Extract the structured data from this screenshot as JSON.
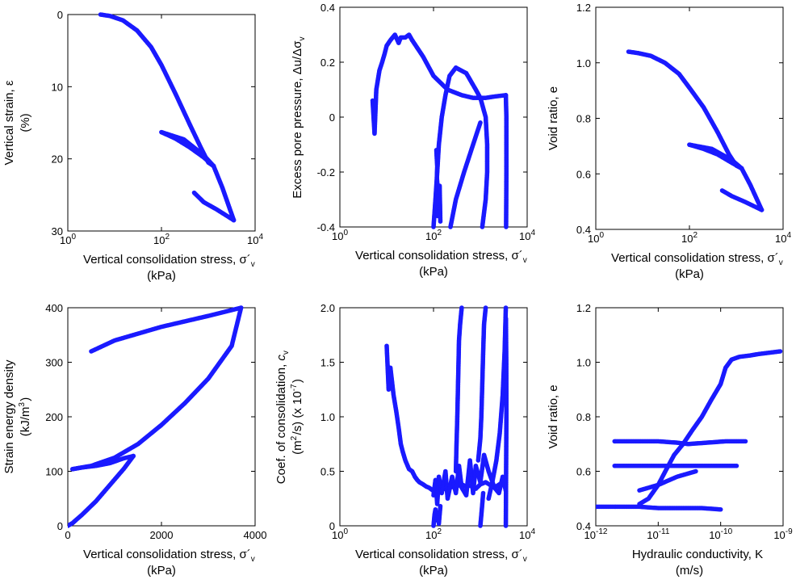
{
  "figure": {
    "point_color": "#1a1aff"
  },
  "chart_data": [
    {
      "id": "p1",
      "type": "scatter",
      "xscale": "log",
      "xlim": [
        1,
        10000
      ],
      "xticks": [
        {
          "v": 1,
          "b": "10",
          "e": "0"
        },
        {
          "v": 100,
          "b": "10",
          "e": "2"
        },
        {
          "v": 10000,
          "b": "10",
          "e": "4"
        }
      ],
      "xlabel_lines": [
        "Vertical consolidation stress, σ´v",
        "(kPa)"
      ],
      "yscale": "linear",
      "ylim": [
        0,
        30
      ],
      "yinverted": true,
      "yticks": [
        0,
        10,
        20,
        30
      ],
      "ylabel_lines": [
        "Vertical strain, ε",
        "(%)"
      ],
      "series": [
        {
          "x": [
            5,
            8,
            15,
            30,
            60,
            100,
            200,
            400,
            700,
            1000,
            1300
          ],
          "y": [
            0,
            0.2,
            0.8,
            2.2,
            4.5,
            7.0,
            11.0,
            15.2,
            18.5,
            20.5,
            21.0
          ]
        },
        {
          "x": [
            1300,
            800,
            400,
            200,
            100
          ],
          "y": [
            21.0,
            19.8,
            18.4,
            17.2,
            16.3
          ]
        },
        {
          "x": [
            100,
            300,
            800,
            1300,
            2000,
            3500
          ],
          "y": [
            16.3,
            17.3,
            19.5,
            21.0,
            24.0,
            28.5
          ]
        },
        {
          "x": [
            3500,
            1500,
            800,
            500
          ],
          "y": [
            28.5,
            27.0,
            26.0,
            24.7
          ]
        }
      ]
    },
    {
      "id": "p2",
      "type": "scatter",
      "xscale": "log",
      "xlim": [
        1,
        10000
      ],
      "xticks": [
        {
          "v": 1,
          "b": "10",
          "e": "0"
        },
        {
          "v": 100,
          "b": "10",
          "e": "2"
        },
        {
          "v": 10000,
          "b": "10",
          "e": "4"
        }
      ],
      "xlabel_lines": [
        "Vertical consolidation stress, σ´v",
        "(kPa)"
      ],
      "yscale": "linear",
      "ylim": [
        -0.4,
        0.4
      ],
      "yinverted": false,
      "yticks": [
        -0.4,
        -0.2,
        0,
        0.2,
        0.4
      ],
      "ylabel_lines": [
        "Excess pore pressure, Δu/Δσv"
      ],
      "series": [
        {
          "x": [
            5,
            5.5,
            6,
            7,
            8,
            9,
            10,
            12,
            15,
            18,
            20,
            25,
            30,
            35
          ],
          "y": [
            0.06,
            -0.06,
            0.1,
            0.17,
            0.2,
            0.23,
            0.26,
            0.28,
            0.3,
            0.27,
            0.29,
            0.29,
            0.3,
            0.28
          ]
        },
        {
          "x": [
            35,
            60,
            100,
            200,
            400,
            700,
            1000,
            1300,
            2000,
            3500
          ],
          "y": [
            0.28,
            0.22,
            0.15,
            0.1,
            0.08,
            0.07,
            0.07,
            0.07,
            0.075,
            0.08
          ]
        },
        {
          "x": [
            3500,
            3600,
            3600,
            3550
          ],
          "y": [
            0.08,
            0.0,
            -0.2,
            -0.4
          ]
        },
        {
          "x": [
            100,
            110,
            120,
            130,
            150,
            180,
            220,
            300
          ],
          "y": [
            -0.4,
            -0.3,
            -0.2,
            -0.1,
            0.0,
            0.08,
            0.15,
            0.18
          ]
        },
        {
          "x": [
            300,
            500,
            800,
            1000,
            1300,
            1400,
            1400,
            1300,
            1100
          ],
          "y": [
            0.18,
            0.16,
            0.1,
            0.07,
            0.0,
            -0.1,
            -0.2,
            -0.3,
            -0.4
          ]
        },
        {
          "x": [
            230,
            300,
            450,
            700,
            1000
          ],
          "y": [
            -0.4,
            -0.3,
            -0.2,
            -0.1,
            -0.02
          ]
        },
        {
          "x": [
            115,
            120,
            118,
            125,
            130,
            122,
            128,
            135,
            140
          ],
          "y": [
            -0.12,
            -0.18,
            -0.22,
            -0.28,
            -0.33,
            -0.36,
            -0.3,
            -0.25,
            -0.38
          ]
        }
      ]
    },
    {
      "id": "p3",
      "type": "scatter",
      "xscale": "log",
      "xlim": [
        1,
        10000
      ],
      "xticks": [
        {
          "v": 1,
          "b": "10",
          "e": "0"
        },
        {
          "v": 100,
          "b": "10",
          "e": "2"
        },
        {
          "v": 10000,
          "b": "10",
          "e": "4"
        }
      ],
      "xlabel_lines": [
        "Vertical consolidation stress, σ´v",
        "(kPa)"
      ],
      "yscale": "linear",
      "ylim": [
        0.4,
        1.2
      ],
      "yinverted": false,
      "yticks": [
        0.4,
        0.6,
        0.8,
        1.0,
        1.2
      ],
      "ylabel_lines": [
        "Void ratio, e"
      ],
      "series": [
        {
          "x": [
            5,
            8,
            15,
            30,
            60,
            100,
            200,
            400,
            700,
            1000,
            1300
          ],
          "y": [
            1.04,
            1.035,
            1.025,
            1.0,
            0.96,
            0.91,
            0.84,
            0.75,
            0.67,
            0.63,
            0.62
          ]
        },
        {
          "x": [
            1300,
            800,
            400,
            200,
            100
          ],
          "y": [
            0.62,
            0.64,
            0.67,
            0.69,
            0.705
          ]
        },
        {
          "x": [
            100,
            300,
            800,
            1300,
            2000,
            3500
          ],
          "y": [
            0.705,
            0.69,
            0.65,
            0.62,
            0.56,
            0.47
          ]
        },
        {
          "x": [
            3500,
            1500,
            800,
            500
          ],
          "y": [
            0.47,
            0.5,
            0.52,
            0.54
          ]
        }
      ]
    },
    {
      "id": "p4",
      "type": "scatter",
      "xscale": "linear",
      "xlim": [
        0,
        4000
      ],
      "xticks": [
        {
          "v": 0,
          "t": "0"
        },
        {
          "v": 2000,
          "t": "2000"
        },
        {
          "v": 4000,
          "t": "4000"
        }
      ],
      "xlabel_lines": [
        "Vertical consolidation stress, σ´v",
        "(kPa)"
      ],
      "yscale": "linear",
      "ylim": [
        0,
        400
      ],
      "yinverted": false,
      "yticks": [
        0,
        100,
        200,
        300,
        400
      ],
      "ylabel_lines": [
        "Strain energy density",
        "(kJ/m3)"
      ],
      "series": [
        {
          "x": [
            0,
            100,
            300,
            600,
            900,
            1200,
            1400
          ],
          "y": [
            0,
            5,
            20,
            45,
            75,
            105,
            128
          ]
        },
        {
          "x": [
            1400,
            1200,
            900,
            600,
            300,
            100
          ],
          "y": [
            128,
            124,
            115,
            110,
            107,
            104
          ]
        },
        {
          "x": [
            100,
            500,
            1000,
            1500,
            2000,
            2500,
            3000,
            3500,
            3700
          ],
          "y": [
            104,
            110,
            125,
            150,
            185,
            225,
            270,
            330,
            400
          ]
        },
        {
          "x": [
            3700,
            3000,
            2000,
            1000,
            500
          ],
          "y": [
            400,
            385,
            365,
            340,
            320
          ]
        }
      ]
    },
    {
      "id": "p5",
      "type": "scatter",
      "xscale": "log",
      "xlim": [
        1,
        10000
      ],
      "xticks": [
        {
          "v": 1,
          "b": "10",
          "e": "0"
        },
        {
          "v": 100,
          "b": "10",
          "e": "2"
        },
        {
          "v": 10000,
          "b": "10",
          "e": "4"
        }
      ],
      "xlabel_lines": [
        "Vertical consolidation stress, σ´v",
        "(kPa)"
      ],
      "yscale": "linear",
      "ylim": [
        0,
        2.0
      ],
      "yinverted": false,
      "yticks": [
        0,
        0.5,
        1.0,
        1.5,
        2.0
      ],
      "ylabel_lines": [
        "Coef. of consolidation, cv",
        "(m2/s) (x 10-7)"
      ],
      "series": [
        {
          "x": [
            10,
            11,
            12,
            14,
            16,
            18,
            20,
            22,
            25,
            28,
            30,
            35,
            40,
            45,
            50,
            60,
            70,
            80,
            100,
            150,
            200,
            300,
            400,
            500,
            600,
            800,
            1000,
            1300,
            2000,
            3000
          ],
          "y": [
            1.65,
            1.25,
            1.45,
            1.2,
            1.05,
            0.9,
            0.75,
            0.68,
            0.6,
            0.55,
            0.52,
            0.5,
            0.45,
            0.42,
            0.4,
            0.38,
            0.36,
            0.35,
            0.32,
            0.33,
            0.35,
            0.36,
            0.38,
            0.36,
            0.37,
            0.34,
            0.38,
            0.4,
            0.35,
            0.4
          ]
        },
        {
          "x": [
            100,
            110,
            120,
            130,
            150,
            180,
            200,
            250,
            300,
            350,
            400,
            500,
            600,
            700,
            800,
            1000,
            1200,
            1500,
            2000,
            2500,
            3000,
            3500
          ],
          "y": [
            0.28,
            0.42,
            0.2,
            0.45,
            0.3,
            0.5,
            0.25,
            0.45,
            0.3,
            0.55,
            0.35,
            0.28,
            0.6,
            0.3,
            0.55,
            0.4,
            0.65,
            0.5,
            0.35,
            0.3,
            0.45,
            0.32
          ]
        },
        {
          "x": [
            100,
            105,
            110,
            115,
            120,
            125,
            130,
            140
          ],
          "y": [
            0.0,
            0.1,
            0.15,
            0.05,
            0.08,
            0.12,
            0.02,
            0.18
          ]
        },
        {
          "x": [
            300,
            310,
            320,
            330,
            340,
            350,
            370,
            400
          ],
          "y": [
            0.5,
            0.75,
            0.95,
            1.2,
            1.45,
            1.7,
            1.85,
            2.0
          ]
        },
        {
          "x": [
            900,
            1000,
            1050,
            1100,
            1150,
            1200,
            1300
          ],
          "y": [
            0.6,
            0.8,
            1.0,
            1.3,
            1.6,
            1.85,
            2.0
          ]
        },
        {
          "x": [
            1500,
            1800,
            2200,
            2600,
            3000,
            3300,
            3500
          ],
          "y": [
            0.25,
            0.4,
            0.6,
            0.85,
            1.2,
            1.6,
            2.0
          ]
        },
        {
          "x": [
            3500,
            3550,
            3600,
            3580,
            3520
          ],
          "y": [
            0.0,
            0.5,
            1.0,
            1.5,
            1.9
          ]
        },
        {
          "x": [
            1000,
            1050,
            1100,
            1150
          ],
          "y": [
            0.0,
            0.1,
            0.2,
            0.3
          ]
        }
      ]
    },
    {
      "id": "p6",
      "type": "scatter",
      "xscale": "log",
      "xlim": [
        1e-12,
        1e-09
      ],
      "xticks": [
        {
          "v": 1e-12,
          "b": "10",
          "e": "-12"
        },
        {
          "v": 1e-11,
          "b": "10",
          "e": "-11"
        },
        {
          "v": 1e-10,
          "b": "10",
          "e": "-10"
        },
        {
          "v": 1e-09,
          "b": "10",
          "e": "-9"
        }
      ],
      "xlabel_lines": [
        "Hydraulic conductivity, K",
        "(m/s)"
      ],
      "yscale": "linear",
      "ylim": [
        0.4,
        1.2
      ],
      "yinverted": false,
      "yticks": [
        0.4,
        0.6,
        0.8,
        1.0,
        1.2
      ],
      "ylabel_lines": [
        "Void ratio, e"
      ],
      "series": [
        {
          "x": [
            9e-10,
            6e-10,
            4e-10,
            3e-10,
            2e-10,
            1.5e-10,
            1.2e-10,
            1e-10,
            7e-11,
            5e-11,
            3.5e-11,
            2.5e-11,
            1.8e-11,
            1.3e-11,
            1e-11,
            7e-12,
            5e-12
          ],
          "y": [
            1.04,
            1.035,
            1.03,
            1.025,
            1.02,
            1.01,
            0.98,
            0.92,
            0.86,
            0.8,
            0.75,
            0.7,
            0.66,
            0.6,
            0.55,
            0.5,
            0.48
          ]
        },
        {
          "x": [
            1e-12,
            2e-12,
            5e-12,
            1e-11,
            2e-11,
            5e-11,
            1e-10
          ],
          "y": [
            0.47,
            0.47,
            0.47,
            0.465,
            0.465,
            0.465,
            0.46
          ]
        },
        {
          "x": [
            2e-12,
            5e-12,
            1e-11,
            2e-11,
            3e-11,
            6e-11,
            1.2e-10,
            2.5e-10
          ],
          "y": [
            0.71,
            0.71,
            0.71,
            0.705,
            0.7,
            0.705,
            0.71,
            0.71
          ]
        },
        {
          "x": [
            2e-12,
            5e-12,
            1e-11,
            2e-11,
            3e-11,
            6e-11,
            1.2e-10,
            1.8e-10
          ],
          "y": [
            0.62,
            0.62,
            0.62,
            0.62,
            0.62,
            0.62,
            0.62,
            0.62
          ]
        },
        {
          "x": [
            5e-12,
            1e-11,
            2e-11,
            4e-11
          ],
          "y": [
            0.53,
            0.55,
            0.58,
            0.6
          ]
        }
      ]
    }
  ]
}
